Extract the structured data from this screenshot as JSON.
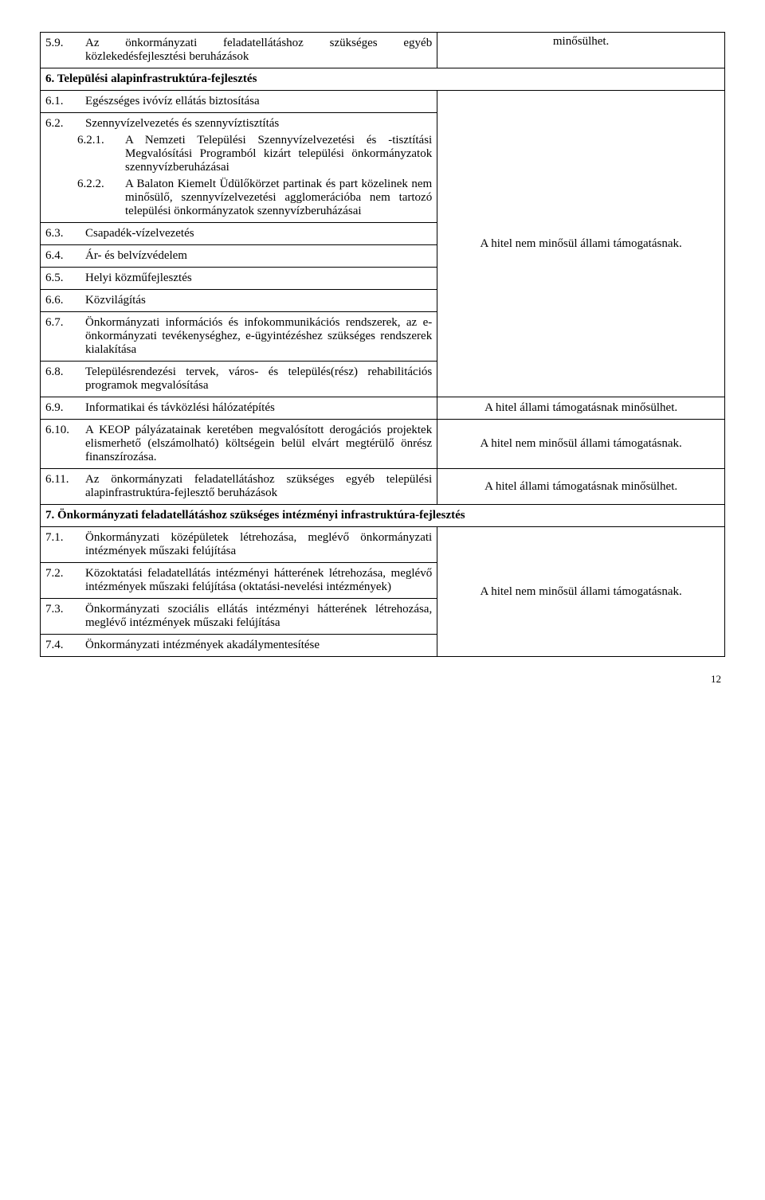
{
  "items": {
    "i5_9": {
      "num": "5.9.",
      "text": "Az önkormányzati feladatellátáshoz szükséges egyéb közlekedésfejlesztési beruházások"
    },
    "minosulhet": "minősülhet.",
    "h6": "6. Települési alapinfrastruktúra-fejlesztés",
    "i6_1": {
      "num": "6.1.",
      "text": "Egészséges ivóvíz ellátás biztosítása"
    },
    "i6_2": {
      "num": "6.2.",
      "text": "Szennyvízelvezetés és szennyvíztisztítás"
    },
    "i6_2_1": {
      "num": "6.2.1.",
      "text": "A Nemzeti Települési Szennyvízelvezetési és -tisztítási Megvalósítási Programból kizárt települési önkormányzatok szennyvízberuházásai"
    },
    "i6_2_2": {
      "num": "6.2.2.",
      "text": "A Balaton Kiemelt Üdülőkörzet partinak és part közelinek nem minősülő, szennyvízelvezetési agglomerációba nem tartozó települési önkormányzatok szennyvízberuházásai"
    },
    "i6_3": {
      "num": "6.3.",
      "text": "Csapadék-vízelvezetés"
    },
    "i6_4": {
      "num": "6.4.",
      "text": "Ár- és belvízvédelem"
    },
    "i6_5": {
      "num": "6.5.",
      "text": "Helyi közműfejlesztés"
    },
    "i6_6": {
      "num": "6.6.",
      "text": "Közvilágítás"
    },
    "i6_7": {
      "num": "6.7.",
      "text": "Önkormányzati információs és infokommunikációs rendszerek, az e-önkormányzati tevékenységhez, e-ügyintézéshez szükséges rendszerek kialakítása"
    },
    "i6_8": {
      "num": "6.8.",
      "text": "Településrendezési tervek, város- és település(rész) rehabilitációs programok megvalósítása"
    },
    "i6_9": {
      "num": "6.9.",
      "text": "Informatikai és távközlési hálózatépítés"
    },
    "i6_10": {
      "num": "6.10.",
      "text": "A KEOP pályázatainak keretében megvalósított derogációs projektek elismerhető (elszámolható) költségein belül elvárt megtérülő önrész finanszírozása."
    },
    "i6_11": {
      "num": "6.11.",
      "text": "Az önkormányzati feladatellátáshoz szükséges egyéb települési alapinfrastruktúra-fejlesztő beruházások"
    },
    "h7": "7. Önkormányzati feladatellátáshoz szükséges intézményi infrastruktúra-fejlesztés",
    "i7_1": {
      "num": "7.1.",
      "text": "Önkormányzati középületek létrehozása, meglévő önkormányzati intézmények műszaki felújítása"
    },
    "i7_2": {
      "num": "7.2.",
      "text": "Közoktatási feladatellátás intézményi hátterének létrehozása, meglévő intézmények műszaki felújítása (oktatási-nevelési intézmények)"
    },
    "i7_3": {
      "num": "7.3.",
      "text": "Önkormányzati szociális ellátás intézményi hátterének létrehozása, meglévő intézmények műszaki felújítása"
    },
    "i7_4": {
      "num": "7.4.",
      "text": "Önkormányzati intézmények akadálymentesítése"
    }
  },
  "status": {
    "nem_minosul": "A hitel nem minősül állami támogatásnak.",
    "allami": "A hitel állami támogatásnak minősülhet."
  },
  "page_number": "12"
}
